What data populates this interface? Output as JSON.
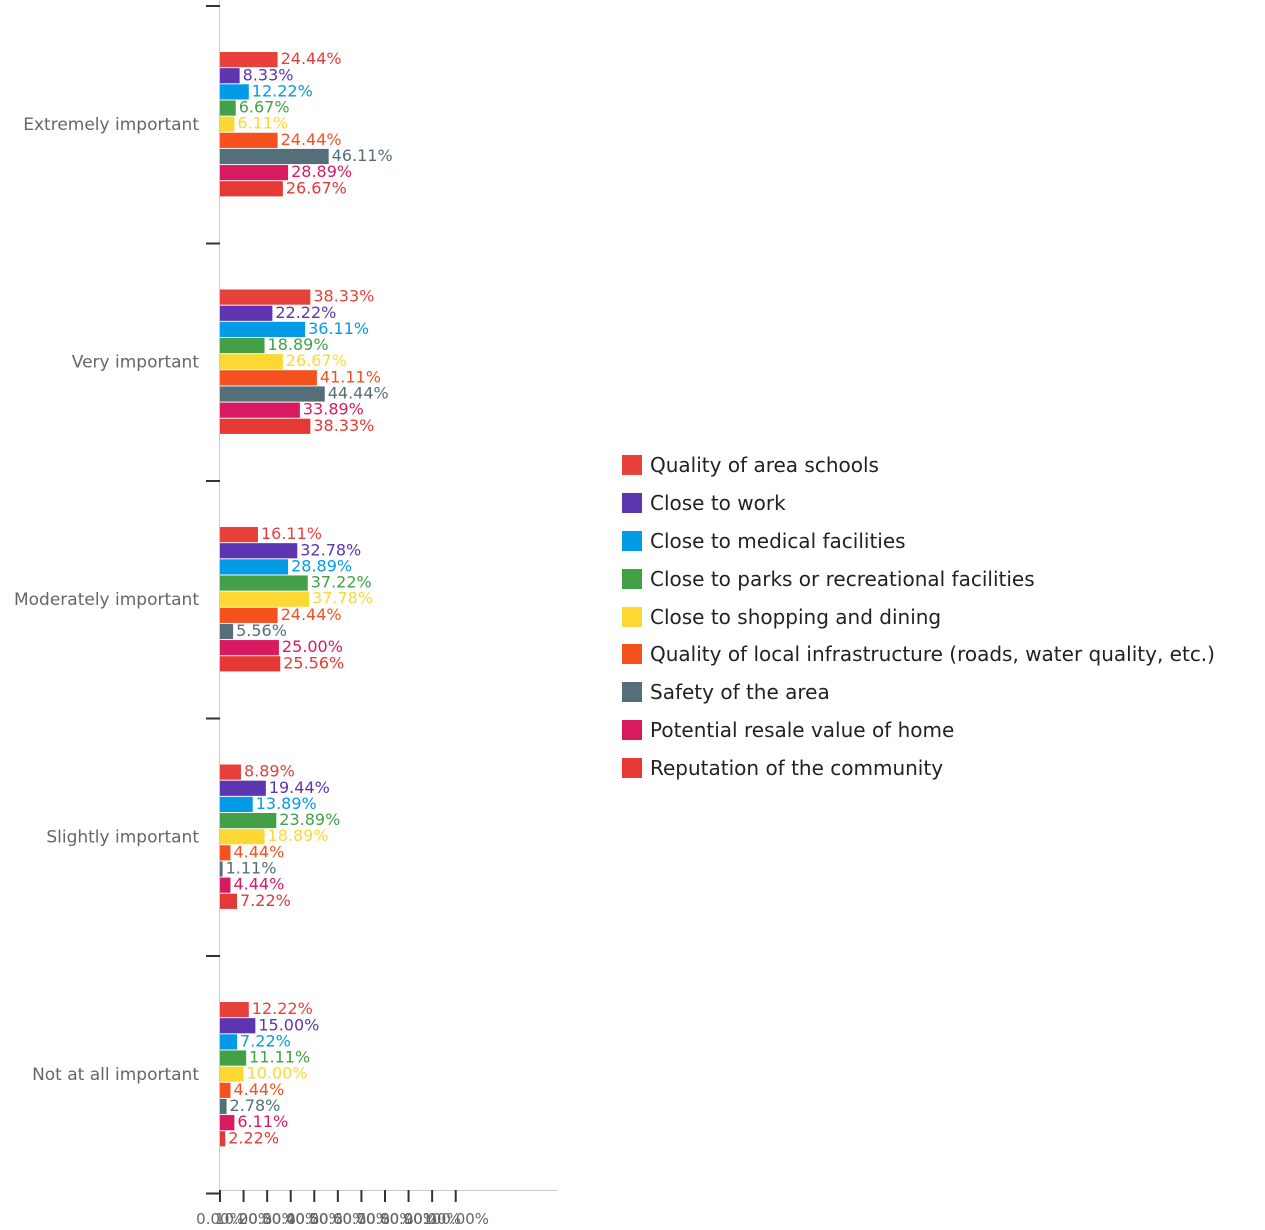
{
  "chart_data": {
    "type": "bar",
    "orientation": "horizontal",
    "categories": [
      "Extremely important",
      "Very important",
      "Moderately important",
      "Slightly important",
      "Not at all important"
    ],
    "series": [
      {
        "name": "Quality of area schools",
        "color": "#e8413c",
        "values": [
          24.44,
          38.33,
          16.11,
          8.89,
          12.22
        ],
        "labels": [
          "24.44%",
          "38.33%",
          "16.11%",
          "8.89%",
          "12.22%"
        ]
      },
      {
        "name": "Close to work",
        "color": "#5e35b1",
        "values": [
          8.33,
          22.22,
          32.78,
          19.44,
          15.0
        ],
        "labels": [
          "8.33%",
          "22.22%",
          "32.78%",
          "19.44%",
          "15.00%"
        ]
      },
      {
        "name": "Close to medical facilities",
        "color": "#039be5",
        "values": [
          12.22,
          36.11,
          28.89,
          13.89,
          7.22
        ],
        "labels": [
          "12.22%",
          "36.11%",
          "28.89%",
          "13.89%",
          "7.22%"
        ]
      },
      {
        "name": "Close to parks or recreational facilities",
        "color": "#43a047",
        "values": [
          6.67,
          18.89,
          37.22,
          23.89,
          11.11
        ],
        "labels": [
          "6.67%",
          "18.89%",
          "37.22%",
          "23.89%",
          "11.11%"
        ]
      },
      {
        "name": "Close to shopping and dining",
        "color": "#fdd835",
        "values": [
          6.11,
          26.67,
          37.78,
          18.89,
          10.0
        ],
        "labels": [
          "6.11%",
          "26.67%",
          "37.78%",
          "18.89%",
          "10.00%"
        ]
      },
      {
        "name": "Quality of local infrastructure (roads, water quality, etc.)",
        "color": "#f4511e",
        "values": [
          24.44,
          41.11,
          24.44,
          4.44,
          4.44
        ],
        "labels": [
          "24.44%",
          "41.11%",
          "24.44%",
          "4.44%",
          "4.44%"
        ]
      },
      {
        "name": "Safety of the area",
        "color": "#546e7a",
        "values": [
          46.11,
          44.44,
          5.56,
          1.11,
          2.78
        ],
        "labels": [
          "46.11%",
          "44.44%",
          "5.56%",
          "1.11%",
          "2.78%"
        ]
      },
      {
        "name": "Potential resale value of home",
        "color": "#d81b60",
        "values": [
          28.89,
          33.89,
          25.0,
          4.44,
          6.11
        ],
        "labels": [
          "28.89%",
          "33.89%",
          "25.00%",
          "4.44%",
          "6.11%"
        ]
      },
      {
        "name": "Reputation of the community",
        "color": "#e53935",
        "values": [
          26.67,
          38.33,
          25.56,
          7.22,
          2.22
        ],
        "labels": [
          "26.67%",
          "38.33%",
          "25.56%",
          "7.22%",
          "2.22%"
        ]
      }
    ],
    "xlim": [
      0,
      100
    ],
    "x_tick_values": [
      0,
      10,
      20,
      30,
      40,
      50,
      60,
      70,
      80,
      90,
      100
    ],
    "x_tick_labels": [
      "0.00%",
      "10.00%",
      "20.00%",
      "30.00%",
      "40.00%",
      "50.00%",
      "60.00%",
      "70.00%",
      "80.00%",
      "90.00%",
      "100.00%"
    ],
    "legend_position": "right",
    "grid": false
  }
}
